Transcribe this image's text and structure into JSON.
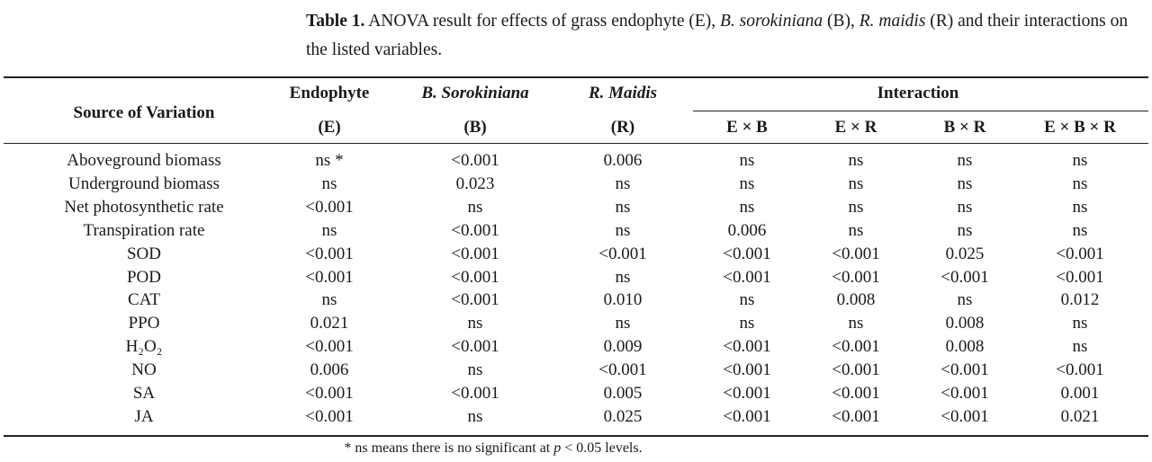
{
  "caption": {
    "label": "Table 1.",
    "text_1": " ANOVA result for effects of grass endophyte (E), ",
    "b_name": "B. sorokiniana",
    "text_2": " (B), ",
    "r_name": "R. maidis",
    "text_3": " (R) and their interactions on the listed variables."
  },
  "headers": {
    "source": "Source of Variation",
    "endophyte": "Endophyte",
    "endophyte_abbr": "(E)",
    "b": "B. Sorokiniana",
    "b_abbr": "(B)",
    "r": "R. Maidis",
    "r_abbr": "(R)",
    "interaction": "Interaction",
    "ExB": "E × B",
    "ExR": "E × R",
    "BxR": "B × R",
    "ExBxR": "E × B × R"
  },
  "rows": [
    {
      "variable": "Aboveground biomass",
      "values": [
        "ns *",
        "<0.001",
        "0.006",
        "ns",
        "ns",
        "ns",
        "ns"
      ]
    },
    {
      "variable": "Underground biomass",
      "values": [
        "ns",
        "0.023",
        "ns",
        "ns",
        "ns",
        "ns",
        "ns"
      ]
    },
    {
      "variable": "Net photosynthetic rate",
      "values": [
        "<0.001",
        "ns",
        "ns",
        "ns",
        "ns",
        "ns",
        "ns"
      ]
    },
    {
      "variable": "Transpiration rate",
      "values": [
        "ns",
        "<0.001",
        "ns",
        "0.006",
        "ns",
        "ns",
        "ns"
      ]
    },
    {
      "variable": "SOD",
      "values": [
        "<0.001",
        "<0.001",
        "<0.001",
        "<0.001",
        "<0.001",
        "0.025",
        "<0.001"
      ]
    },
    {
      "variable": "POD",
      "values": [
        "<0.001",
        "<0.001",
        "ns",
        "<0.001",
        "<0.001",
        "<0.001",
        "<0.001"
      ]
    },
    {
      "variable": "CAT",
      "values": [
        "ns",
        "<0.001",
        "0.010",
        "ns",
        "0.008",
        "ns",
        "0.012"
      ]
    },
    {
      "variable": "PPO",
      "values": [
        "0.021",
        "ns",
        "ns",
        "ns",
        "ns",
        "0.008",
        "ns"
      ]
    },
    {
      "variable": "H₂O₂",
      "values": [
        "<0.001",
        "<0.001",
        "0.009",
        "<0.001",
        "<0.001",
        "0.008",
        "ns"
      ]
    },
    {
      "variable": "NO",
      "values": [
        "0.006",
        "ns",
        "<0.001",
        "<0.001",
        "<0.001",
        "<0.001",
        "<0.001"
      ]
    },
    {
      "variable": "SA",
      "values": [
        "<0.001",
        "<0.001",
        "0.005",
        "<0.001",
        "<0.001",
        "<0.001",
        "0.001"
      ]
    },
    {
      "variable": "JA",
      "values": [
        "<0.001",
        "ns",
        "0.025",
        "<0.001",
        "<0.001",
        "<0.001",
        "0.021"
      ]
    }
  ],
  "footnote": {
    "text_1": "* ns means there is no significant at ",
    "p": "p",
    "text_2": " < 0.05 levels."
  }
}
